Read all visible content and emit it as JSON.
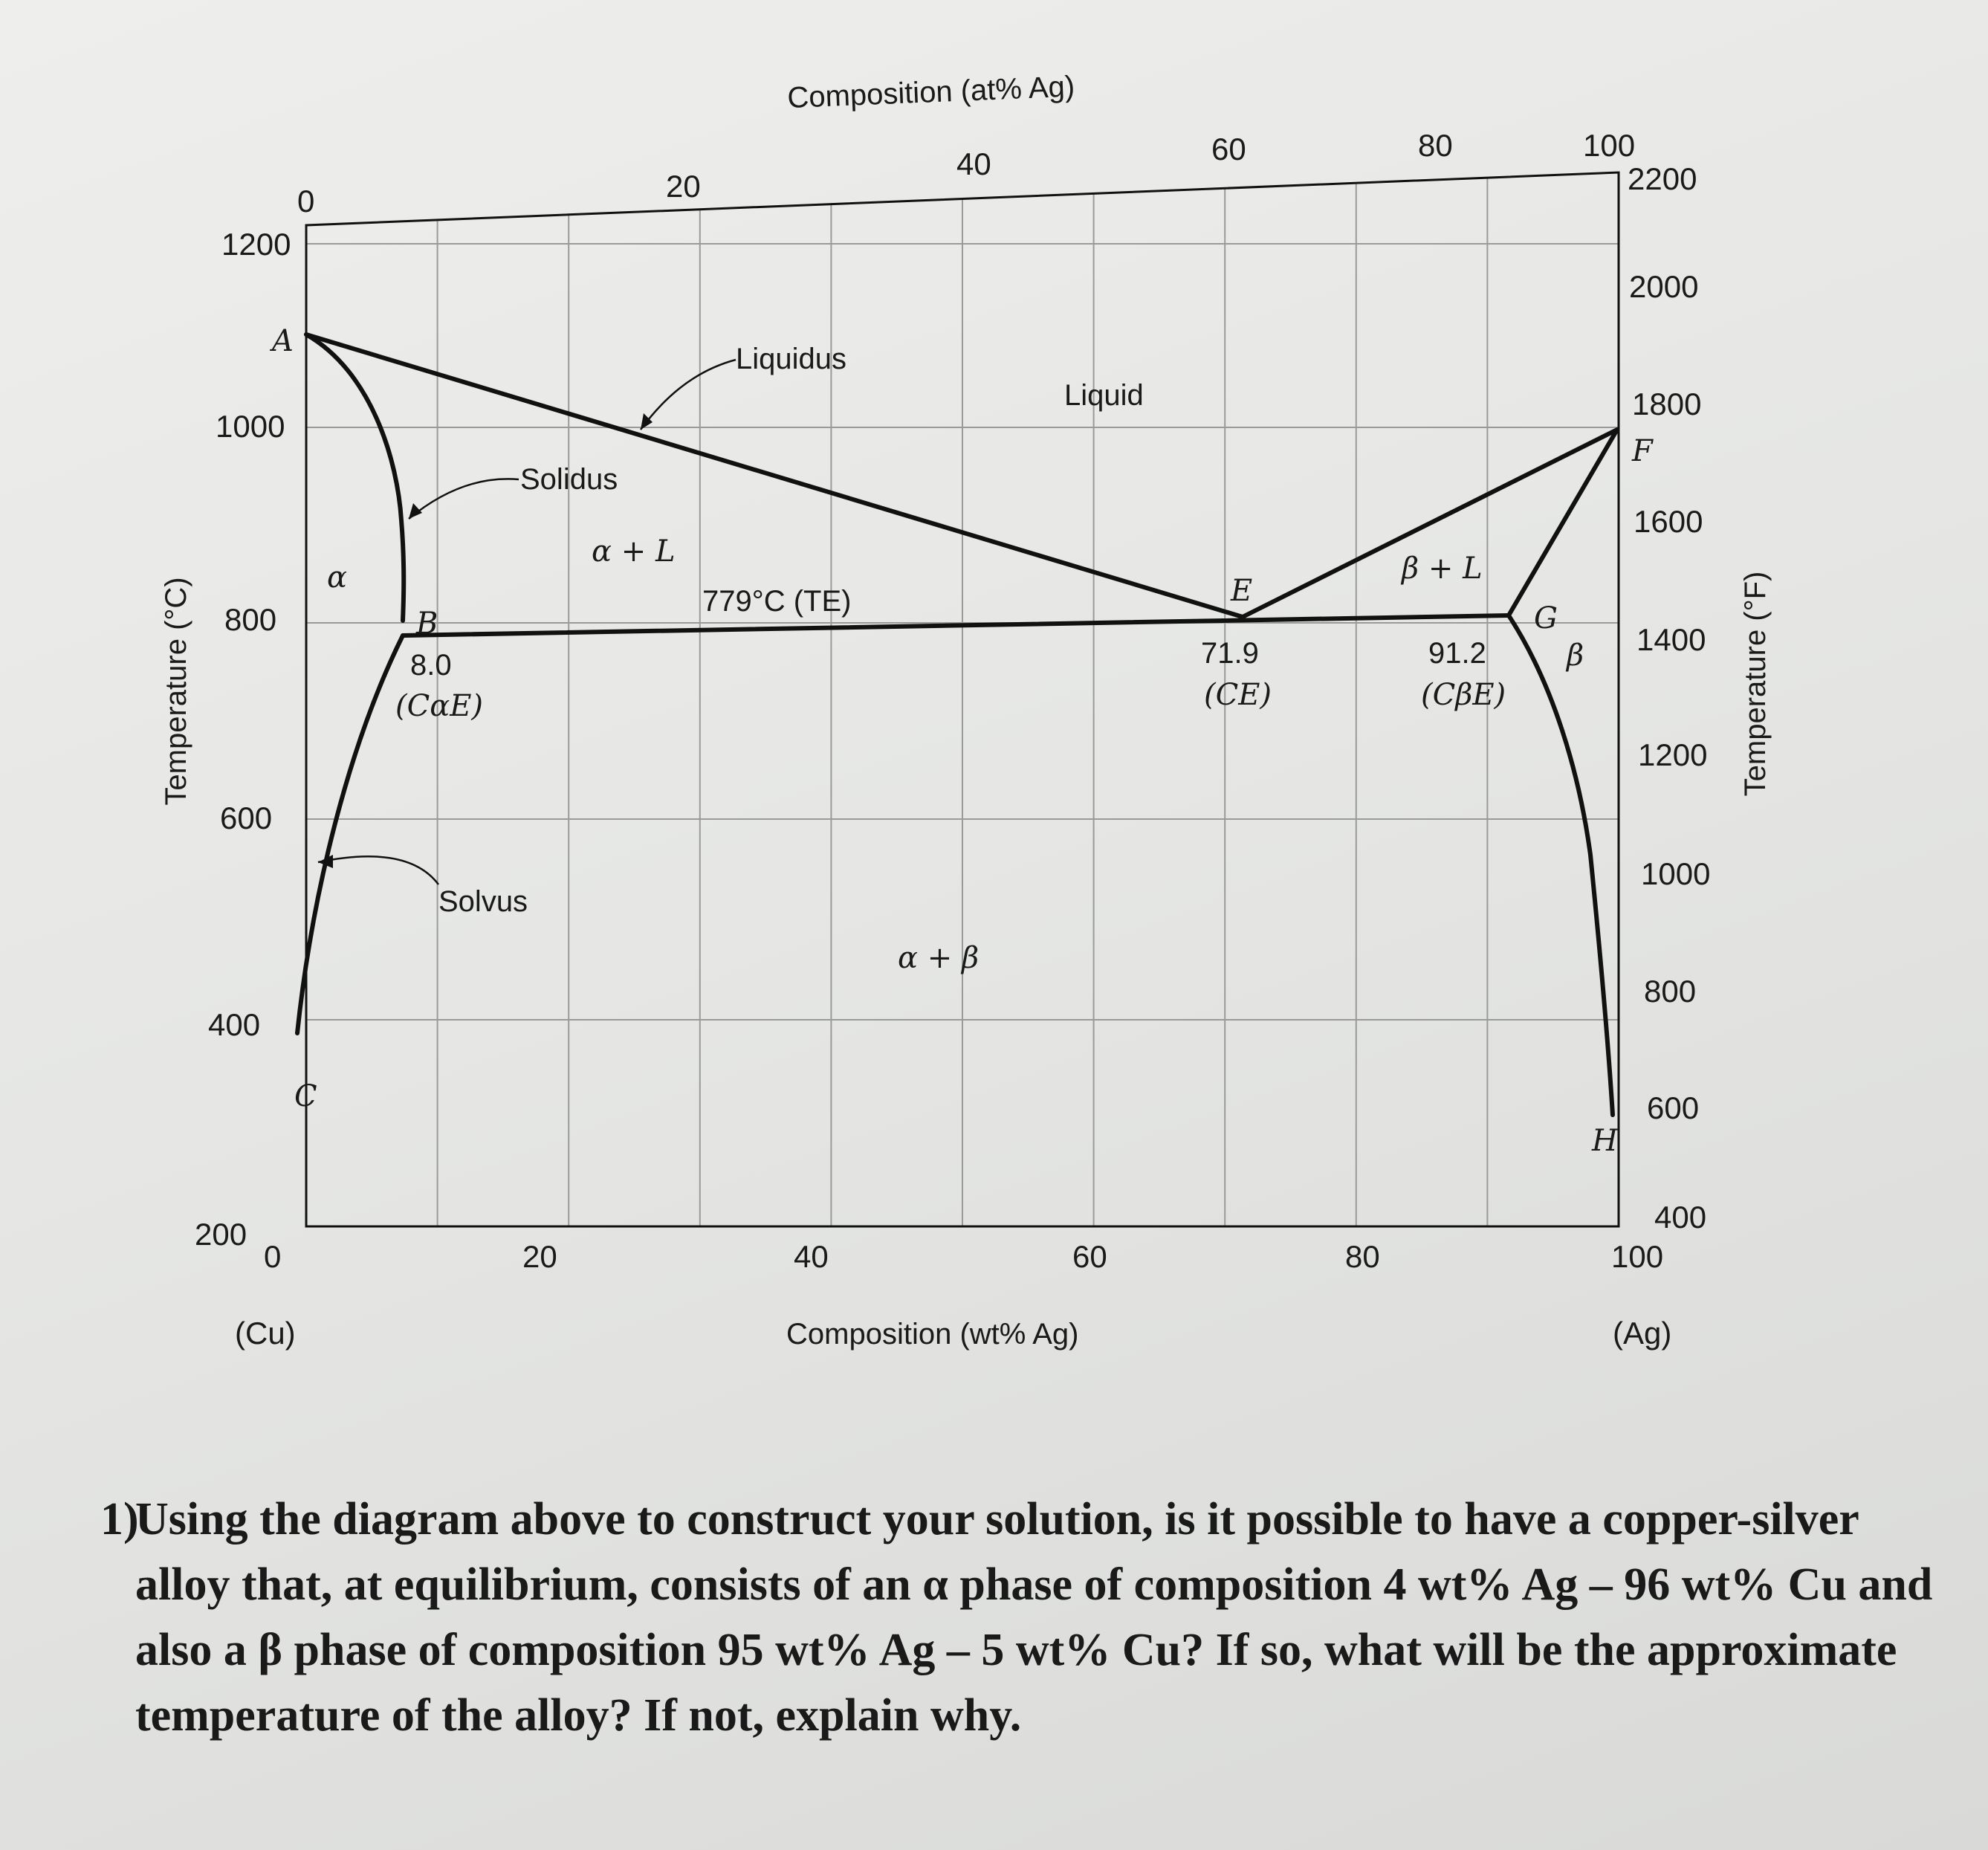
{
  "diagram": {
    "top_axis_title": "Composition (at% Ag)",
    "bottom_axis_title": "Composition (wt% Ag)",
    "left_axis_title": "Temperature (°C)",
    "right_axis_title": "Temperature (°F)",
    "top_ticks": [
      "0",
      "20",
      "40",
      "60",
      "80",
      "100"
    ],
    "bottom_ticks": [
      "0",
      "20",
      "40",
      "60",
      "80",
      "100"
    ],
    "left_ticks": [
      "1200",
      "1000",
      "800",
      "600",
      "400",
      "200"
    ],
    "right_ticks": [
      "2200",
      "2000",
      "1800",
      "1600",
      "1400",
      "1200",
      "1000",
      "800",
      "600",
      "400"
    ],
    "end_labels": {
      "left": "(Cu)",
      "right": "(Ag)"
    },
    "points": {
      "A": "A",
      "B": "B",
      "C": "C",
      "E": "E",
      "F": "F",
      "G": "G",
      "H": "H"
    },
    "regions": {
      "liquid": "Liquid",
      "alpha": "α",
      "beta": "β",
      "alpha_l": "α + L",
      "beta_l": "β + L",
      "alpha_beta": "α + β"
    },
    "curve_labels": {
      "liquidus": "Liquidus",
      "solidus": "Solidus",
      "solvus": "Solvus"
    },
    "annotations": {
      "eutectic_temp": "779°C (TE)",
      "c_alpha_value": "8.0",
      "c_alpha_label": "(CαE)",
      "c_e_value": "71.9",
      "c_e_label": "(CE)",
      "c_beta_value": "91.2",
      "c_beta_label": "(CβE)"
    },
    "colors": {
      "lines": "#111111",
      "grid": "#9a9b99",
      "paper": "#e8e9e7"
    }
  },
  "question": {
    "number": "1)",
    "text": "Using the diagram above to construct your solution, is it possible to have a copper-silver alloy that, at equilibrium, consists of an α phase of composition 4 wt% Ag – 96 wt% Cu and also a β phase of composition 95 wt% Ag – 5 wt% Cu? If so, what will be the approximate temperature of the alloy? If not, explain why."
  }
}
